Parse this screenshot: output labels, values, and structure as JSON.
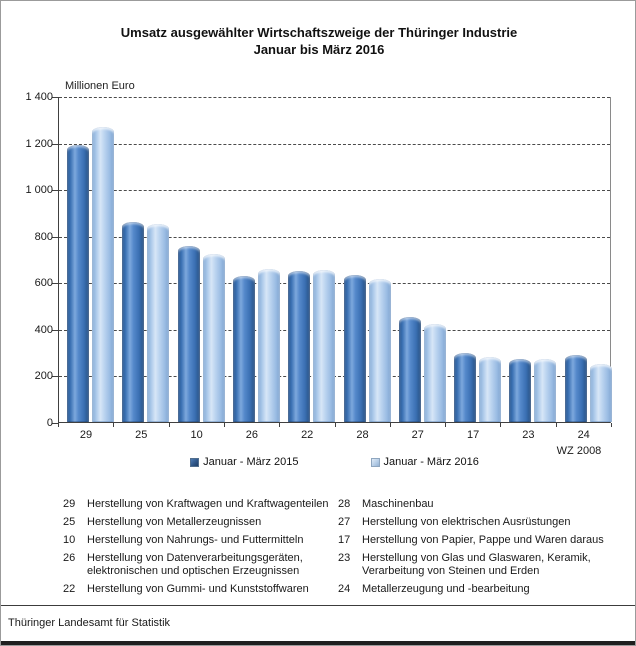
{
  "title": {
    "line1": "Umsatz ausgewählter Wirtschaftszweige der Thüringer Industrie",
    "line2": "Januar bis März 2016"
  },
  "chart_data": {
    "type": "bar",
    "title": "Umsatz ausgewählter Wirtschaftszweige der Thüringer Industrie Januar bis März 2016",
    "ylabel": "Millionen Euro",
    "xlabel": "WZ 2008",
    "ylim": [
      0,
      1400
    ],
    "ytick_step": 200,
    "ytick_labels": [
      "0",
      "200",
      "400",
      "600",
      "800",
      "1 000",
      "1 200",
      "1 400"
    ],
    "grid": "horizontal dashed",
    "legend_position": "bottom center",
    "categories": [
      "29",
      "25",
      "10",
      "26",
      "22",
      "28",
      "27",
      "17",
      "23",
      "24"
    ],
    "series": [
      {
        "name": "Januar - März 2015",
        "key": "s2015",
        "values": [
          1190,
          857,
          757,
          629,
          649,
          630,
          450,
          295,
          269,
          286
        ]
      },
      {
        "name": "Januar - März 2016",
        "key": "s2016",
        "values": [
          1268,
          851,
          723,
          659,
          653,
          612,
          421,
          280,
          271,
          250
        ]
      }
    ]
  },
  "colors": {
    "bar_2015": "#3a6fb2",
    "bar_2016": "#aecbec",
    "grid": "#4a4a4a",
    "text": "#1a1a1a"
  },
  "sector_list": {
    "rows": [
      {
        "left_code": "29",
        "left_label": "Herstellung von Kraftwagen und Kraftwagenteilen",
        "right_code": "28",
        "right_label": "Maschinenbau"
      },
      {
        "left_code": "25",
        "left_label": "Herstellung von Metallerzeugnissen",
        "right_code": "27",
        "right_label": "Herstellung von elektrischen Ausrüstungen"
      },
      {
        "left_code": "10",
        "left_label": "Herstellung von Nahrungs- und Futtermitteln",
        "right_code": "17",
        "right_label": "Herstellung von Papier, Pappe und Waren daraus"
      },
      {
        "left_code": "26",
        "left_label": "Herstellung von Datenverarbeitungsgeräten, elektronischen und optischen Erzeugnissen",
        "right_code": "23",
        "right_label": "Herstellung von Glas und Glaswaren, Keramik, Verarbeitung von Steinen und Erden"
      },
      {
        "left_code": "22",
        "left_label": "Herstellung von Gummi- und  Kunststoffwaren",
        "right_code": "24",
        "right_label": "Metallerzeugung und -bearbeitung"
      }
    ]
  },
  "footer": {
    "source": "Thüringer Landesamt für Statistik"
  }
}
